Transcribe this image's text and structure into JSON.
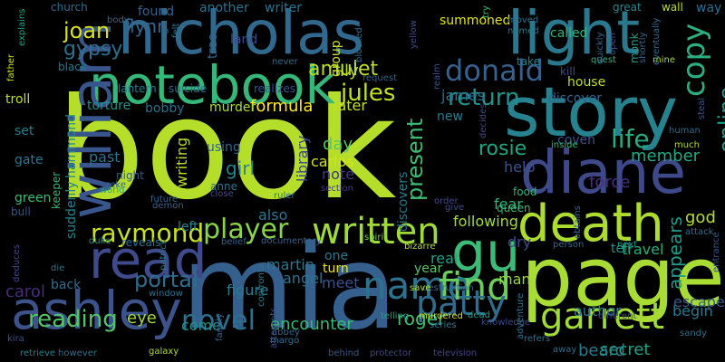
{
  "words": [
    {
      "text": "book",
      "color": "#b5de2b"
    },
    {
      "text": "mia",
      "color": "#355f8d"
    },
    {
      "text": "nicholas",
      "color": "#31688e"
    },
    {
      "text": "light",
      "color": "#2a788e"
    },
    {
      "text": "story",
      "color": "#26828e"
    },
    {
      "text": "page",
      "color": "#a8db34"
    },
    {
      "text": "notebook",
      "color": "#35b779"
    },
    {
      "text": "diane",
      "color": "#3e4989"
    },
    {
      "text": "william",
      "color": "#39568c"
    },
    {
      "text": "death",
      "color": "#addc30"
    },
    {
      "text": "read",
      "color": "#3e4a89"
    },
    {
      "text": "ashley",
      "color": "#3b528b"
    },
    {
      "text": "gu",
      "color": "#3bbb75"
    },
    {
      "text": "written",
      "color": "#a0da39"
    },
    {
      "text": "name",
      "color": "#2c728e"
    },
    {
      "text": "find",
      "color": "#6ccd5a"
    },
    {
      "text": "garrett",
      "color": "#a2da37"
    },
    {
      "text": "patty",
      "color": "#2f6c8e"
    },
    {
      "text": "donald",
      "color": "#34618d"
    },
    {
      "text": "player",
      "color": "#89d548"
    },
    {
      "text": "raymond",
      "color": "#cae11f"
    },
    {
      "text": "novel",
      "color": "#2d708e"
    },
    {
      "text": "reading",
      "color": "#52c569"
    },
    {
      "text": "return",
      "color": "#1f948c"
    },
    {
      "text": "copy",
      "color": "#2ab07f"
    },
    {
      "text": "life",
      "color": "#25ab82"
    },
    {
      "text": "joan",
      "color": "#d8e219"
    },
    {
      "text": "amulet",
      "color": "#bddf26"
    },
    {
      "text": "jules",
      "color": "#c0df25"
    },
    {
      "text": "flynn",
      "color": "#32658e"
    },
    {
      "text": "gypsy",
      "color": "#2d708e"
    },
    {
      "text": "portal",
      "color": "#2e6d8e"
    },
    {
      "text": "present",
      "color": "#3fbc73"
    },
    {
      "text": "rosie",
      "color": "#21a685"
    },
    {
      "text": "roger",
      "color": "#42be71"
    },
    {
      "text": "encounter",
      "color": "#37b878"
    },
    {
      "text": "carol",
      "color": "#472c7a"
    },
    {
      "text": "secret",
      "color": "#20a486"
    },
    {
      "text": "beard",
      "color": "#287d8e"
    },
    {
      "text": "james",
      "color": "#2e6e8e"
    },
    {
      "text": "online",
      "color": "#1e9c89"
    },
    {
      "text": "writing",
      "color": "#b8de29"
    },
    {
      "text": "library",
      "color": "#3f4889"
    },
    {
      "text": "formula",
      "color": "#fde725"
    },
    {
      "text": "girl",
      "color": "#25848e"
    },
    {
      "text": "past",
      "color": "#2c728e"
    },
    {
      "text": "day",
      "color": "#58c765"
    },
    {
      "text": "carlos",
      "color": "#d2e21b"
    },
    {
      "text": "note",
      "color": "#453581"
    },
    {
      "text": "help",
      "color": "#3b528b"
    },
    {
      "text": "force",
      "color": "#472f7d"
    },
    {
      "text": "member",
      "color": "#22a785"
    },
    {
      "text": "appears",
      "color": "#1e9b8a"
    },
    {
      "text": "god",
      "color": "#b5de2b"
    },
    {
      "text": "travel",
      "color": "#27ad81"
    },
    {
      "text": "begin",
      "color": "#2a788e"
    },
    {
      "text": "escape",
      "color": "#38598c"
    },
    {
      "text": "man",
      "color": "#98d83e"
    },
    {
      "text": "dry",
      "color": "#3d4d8a"
    },
    {
      "text": "fear",
      "color": "#2fb47c"
    },
    {
      "text": "following",
      "color": "#a5db36"
    },
    {
      "text": "also",
      "color": "#2a768e"
    },
    {
      "text": "martin",
      "color": "#2a788e"
    },
    {
      "text": "angel",
      "color": "#2c728e"
    },
    {
      "text": "meet",
      "color": "#3b518b"
    },
    {
      "text": "turn",
      "color": "#efe51c"
    },
    {
      "text": "one",
      "color": "#2a788e"
    },
    {
      "text": "real",
      "color": "#1fa088"
    },
    {
      "text": "year",
      "color": "#56c667"
    },
    {
      "text": "author",
      "color": "#2a788e"
    },
    {
      "text": "eye",
      "color": "#9dd93b"
    },
    {
      "text": "back",
      "color": "#2e6e8e"
    },
    {
      "text": "come",
      "color": "#20928c"
    },
    {
      "text": "figure",
      "color": "#287c8e"
    },
    {
      "text": "tell",
      "color": "#21918c"
    },
    {
      "text": "bobby",
      "color": "#2e6d8e"
    },
    {
      "text": "torture",
      "color": "#20938c"
    },
    {
      "text": "murder",
      "color": "#addc30"
    },
    {
      "text": "later",
      "color": "#c5e021"
    },
    {
      "text": "new",
      "color": "#287c8e"
    },
    {
      "text": "coven",
      "color": "#3b528b"
    },
    {
      "text": "discover",
      "color": "#32648e"
    },
    {
      "text": "green",
      "color": "#3dbc74"
    },
    {
      "text": "gate",
      "color": "#2a768e"
    },
    {
      "text": "set",
      "color": "#277f8e"
    },
    {
      "text": "hammond",
      "color": "#23898e"
    },
    {
      "text": "suddenly",
      "color": "#25848e"
    },
    {
      "text": "troll",
      "color": "#c2df23"
    },
    {
      "text": "keeper",
      "color": "#35b779"
    },
    {
      "text": "bull",
      "color": "#3a538b"
    },
    {
      "text": "another",
      "color": "#2d708e"
    },
    {
      "text": "writer",
      "color": "#2c738e"
    },
    {
      "text": "lily",
      "color": "#b5de2b"
    },
    {
      "text": "summoned",
      "color": "#e2e418"
    },
    {
      "text": "called",
      "color": "#32b67a"
    },
    {
      "text": "found",
      "color": "#34618d"
    },
    {
      "text": "land",
      "color": "#3e4989"
    },
    {
      "text": "group",
      "color": "#d0e11c"
    },
    {
      "text": "tree",
      "color": "#32648e"
    },
    {
      "text": "using",
      "color": "#31678e"
    },
    {
      "text": "night",
      "color": "#38598c"
    },
    {
      "text": "anne",
      "color": "#2a778e"
    },
    {
      "text": "left",
      "color": "#23898e"
    },
    {
      "text": "reveals",
      "color": "#2d708e"
    },
    {
      "text": "documentary",
      "color": "#34618d"
    },
    {
      "text": "future",
      "color": "#30698e"
    },
    {
      "text": "ruler",
      "color": "#2a768e"
    },
    {
      "text": "section",
      "color": "#453882"
    },
    {
      "text": "spirit",
      "color": "#7ad151"
    },
    {
      "text": "discovers",
      "color": "#2a788e"
    },
    {
      "text": "house",
      "color": "#b8de29"
    },
    {
      "text": "kill",
      "color": "#3e4a89"
    },
    {
      "text": "realizes",
      "color": "#3b528b"
    },
    {
      "text": "lantern",
      "color": "#287d8e"
    },
    {
      "text": "suicide",
      "color": "#2e6d8e"
    },
    {
      "text": "black",
      "color": "#2a778e"
    },
    {
      "text": "church",
      "color": "#2e6e8e"
    },
    {
      "text": "explains",
      "color": "#1fa187"
    },
    {
      "text": "father",
      "color": "#d2e21b"
    },
    {
      "text": "take",
      "color": "#26828e"
    },
    {
      "text": "request",
      "color": "#33638d"
    },
    {
      "text": "great",
      "color": "#23898e"
    },
    {
      "text": "monk",
      "color": "#1fa188"
    },
    {
      "text": "wall",
      "color": "#b8de29"
    },
    {
      "text": "way",
      "color": "#2e6e8e"
    },
    {
      "text": "zeke",
      "color": "#31678e"
    },
    {
      "text": "world",
      "color": "#22a785"
    },
    {
      "text": "duke",
      "color": "#20938c"
    },
    {
      "text": "patrick",
      "color": "#297a8e"
    },
    {
      "text": "demon",
      "color": "#33628d"
    },
    {
      "text": "belief",
      "color": "#34618d"
    },
    {
      "text": "close",
      "color": "#3d4e8a"
    },
    {
      "text": "order",
      "color": "#3e4a89"
    },
    {
      "text": "queen",
      "color": "#38b977"
    },
    {
      "text": "give",
      "color": "#3d4d8a"
    },
    {
      "text": "food",
      "color": "#32b67a"
    },
    {
      "text": "obtains",
      "color": "#31678e"
    },
    {
      "text": "person",
      "color": "#30698e"
    },
    {
      "text": "attack",
      "color": "#2e6d8e"
    },
    {
      "text": "next",
      "color": "#1e9c89"
    },
    {
      "text": "entrance",
      "color": "#39568c"
    },
    {
      "text": "bizarre",
      "color": "#b2dd2d"
    },
    {
      "text": "destruction",
      "color": "#31678e"
    },
    {
      "text": "save",
      "color": "#addc30"
    },
    {
      "text": "murdered",
      "color": "#d2e21b"
    },
    {
      "text": "dead",
      "color": "#20a386"
    },
    {
      "text": "knowledge",
      "color": "#3e4a89"
    },
    {
      "text": "adventure",
      "color": "#2c738e"
    },
    {
      "text": "different",
      "color": "#3f4889"
    },
    {
      "text": "sandy",
      "color": "#2e6e8e"
    },
    {
      "text": "series",
      "color": "#2a788e"
    },
    {
      "text": "margo",
      "color": "#2c728e"
    },
    {
      "text": "abbey",
      "color": "#32648e"
    },
    {
      "text": "protector",
      "color": "#3e4989"
    },
    {
      "text": "behind",
      "color": "#38598c"
    },
    {
      "text": "television",
      "color": "#3f4889"
    },
    {
      "text": "kira",
      "color": "#3b528b"
    },
    {
      "text": "retrieve",
      "color": "#26828e"
    },
    {
      "text": "however",
      "color": "#2c728e"
    },
    {
      "text": "galaxy",
      "color": "#b2dd2d"
    },
    {
      "text": "window",
      "color": "#2c738e"
    },
    {
      "text": "die",
      "color": "#2a768e"
    },
    {
      "text": "deduces",
      "color": "#3e4a89"
    },
    {
      "text": "family",
      "color": "#34618d"
    },
    {
      "text": "attempts",
      "color": "#3d4e8a"
    },
    {
      "text": "confronts",
      "color": "#2a788e"
    },
    {
      "text": "telling",
      "color": "#1fa188"
    },
    {
      "text": "refers",
      "color": "#2c738e"
    },
    {
      "text": "away",
      "color": "#2e6d8e"
    },
    {
      "text": "quest",
      "color": "#2fb47c"
    },
    {
      "text": "inside",
      "color": "#32b67a"
    },
    {
      "text": "decides",
      "color": "#3e4a89"
    },
    {
      "text": "realm",
      "color": "#3b528b"
    },
    {
      "text": "human",
      "color": "#30698e"
    },
    {
      "text": "much",
      "color": "#b2dd2d"
    },
    {
      "text": "steal",
      "color": "#39568c"
    },
    {
      "text": "named",
      "color": "#2a788e"
    },
    {
      "text": "try",
      "color": "#38b977"
    },
    {
      "text": "moved",
      "color": "#2c728e"
    },
    {
      "text": "blocked",
      "color": "#2c728e"
    },
    {
      "text": "mine",
      "color": "#addc30"
    },
    {
      "text": "open",
      "color": "#3d4e8a"
    },
    {
      "text": "quickly",
      "color": "#31678e"
    },
    {
      "text": "shortly",
      "color": "#31678e"
    },
    {
      "text": "eventually",
      "color": "#30698e"
    },
    {
      "text": "never",
      "color": "#2e6e8e"
    },
    {
      "text": "felt",
      "color": "#2c728e"
    },
    {
      "text": "body",
      "color": "#2e6d8e"
    },
    {
      "text": "n",
      "color": "#31678e"
    },
    {
      "text": "yellow",
      "color": "#3e4a89"
    }
  ]
}
